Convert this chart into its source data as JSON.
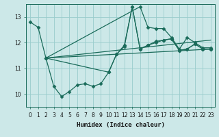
{
  "xlabel": "Humidex (Indice chaleur)",
  "ylabel": "",
  "bg_color": "#cce8e8",
  "grid_color": "#99cccc",
  "line_color": "#1a6b5a",
  "xlim": [
    -0.5,
    23.5
  ],
  "ylim": [
    9.5,
    13.5
  ],
  "yticks": [
    10,
    11,
    12,
    13
  ],
  "xticks": [
    0,
    1,
    2,
    3,
    4,
    5,
    6,
    7,
    8,
    9,
    10,
    11,
    12,
    13,
    14,
    15,
    16,
    17,
    18,
    19,
    20,
    21,
    22,
    23
  ],
  "series": [
    {
      "x": [
        0,
        1,
        2,
        14,
        15,
        16,
        17,
        18,
        19,
        20,
        21,
        22,
        23
      ],
      "y": [
        12.8,
        12.6,
        11.4,
        13.4,
        12.6,
        12.55,
        12.55,
        12.2,
        11.75,
        12.2,
        12.0,
        11.8,
        11.8
      ]
    },
    {
      "x": [
        2,
        3,
        4,
        5,
        6,
        7,
        8,
        9,
        10,
        11,
        12,
        13,
        14,
        15,
        16,
        17,
        18,
        19,
        20,
        21,
        22,
        23
      ],
      "y": [
        11.4,
        10.3,
        9.9,
        10.1,
        10.35,
        10.4,
        10.3,
        10.4,
        10.85,
        11.55,
        11.9,
        13.4,
        11.75,
        11.9,
        12.05,
        12.1,
        12.15,
        11.7,
        11.75,
        11.95,
        11.75,
        11.75
      ]
    },
    {
      "x": [
        2,
        10,
        11,
        12,
        13,
        14,
        15,
        16,
        17,
        18,
        19,
        20,
        21,
        22,
        23
      ],
      "y": [
        11.4,
        10.85,
        11.55,
        11.85,
        13.4,
        11.75,
        11.9,
        12.0,
        12.1,
        12.15,
        11.7,
        11.75,
        11.95,
        11.75,
        11.75
      ]
    },
    {
      "x": [
        2,
        23
      ],
      "y": [
        11.4,
        11.75
      ]
    },
    {
      "x": [
        2,
        23
      ],
      "y": [
        11.4,
        12.1
      ]
    }
  ]
}
